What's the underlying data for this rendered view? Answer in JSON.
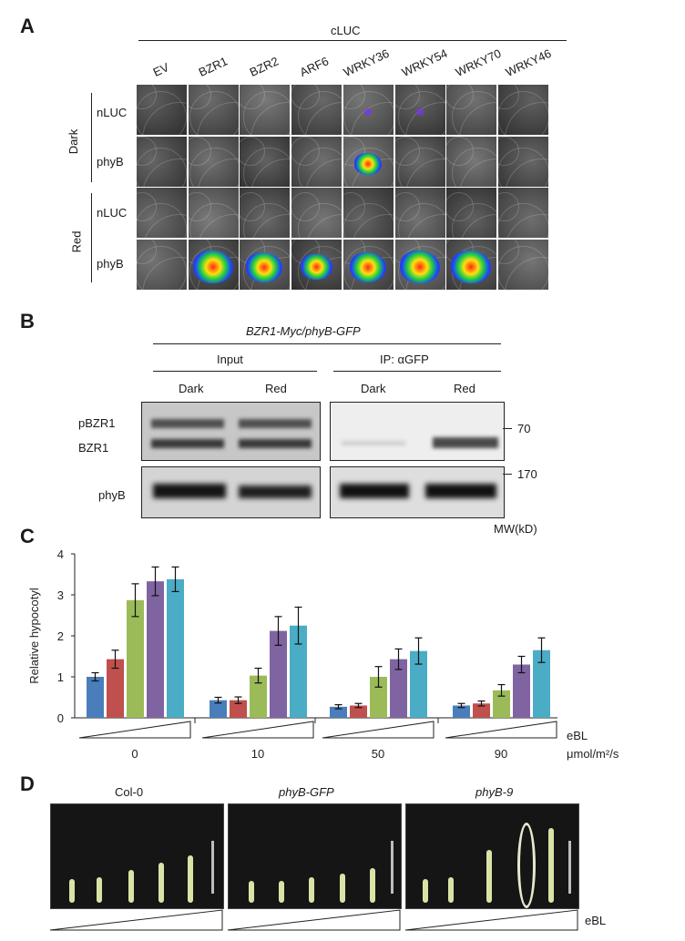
{
  "panels": {
    "a": "A",
    "b": "B",
    "c": "C",
    "d": "D"
  },
  "panelA": {
    "cluc_label": "cLUC",
    "columns": [
      "EV",
      "BZR1",
      "BZR2",
      "ARF6",
      "WRKY36",
      "WRKY54",
      "WRKY70",
      "WRKY46"
    ],
    "conditions": [
      "Dark",
      "Red"
    ],
    "rows": [
      "nLUC",
      "phyB",
      "nLUC",
      "phyB"
    ]
  },
  "panelB": {
    "title": "BZR1-Myc/phyB-GFP",
    "input_label": "Input",
    "ip_label": "IP: αGFP",
    "lanes": [
      "Dark",
      "Red",
      "Dark",
      "Red"
    ],
    "band_labels": [
      "pBZR1",
      "BZR1",
      "phyB"
    ],
    "mw_markers": [
      "70",
      "170"
    ],
    "mw_unit": "MW(kD)"
  },
  "panelD": {
    "genotypes": [
      "Col-0",
      "phyB-GFP",
      "phyB-9"
    ],
    "treatment_label": "eBL"
  },
  "chart_data": {
    "type": "bar",
    "ylabel": "Relative hypocotyl",
    "ylim": [
      0,
      4
    ],
    "yticks": [
      0,
      1,
      2,
      3,
      4
    ],
    "categories": [
      "0",
      "10",
      "50",
      "90"
    ],
    "xunit": "μmol/m²/s",
    "gradient_label": "eBL",
    "series_colors": [
      "#4a7ebb",
      "#c0504d",
      "#9bbb59",
      "#8064a2",
      "#4bacc6"
    ],
    "series": [
      {
        "values": [
          1.0,
          0.43,
          0.27,
          0.3
        ],
        "errors": [
          0.1,
          0.07,
          0.05,
          0.05
        ]
      },
      {
        "values": [
          1.43,
          0.43,
          0.3,
          0.35
        ],
        "errors": [
          0.22,
          0.08,
          0.05,
          0.06
        ]
      },
      {
        "values": [
          2.87,
          1.03,
          1.0,
          0.67
        ],
        "errors": [
          0.4,
          0.18,
          0.25,
          0.14
        ]
      },
      {
        "values": [
          3.33,
          2.12,
          1.43,
          1.3
        ],
        "errors": [
          0.35,
          0.35,
          0.25,
          0.2
        ]
      },
      {
        "values": [
          3.38,
          2.25,
          1.63,
          1.65
        ],
        "errors": [
          0.3,
          0.45,
          0.32,
          0.3
        ]
      }
    ]
  }
}
